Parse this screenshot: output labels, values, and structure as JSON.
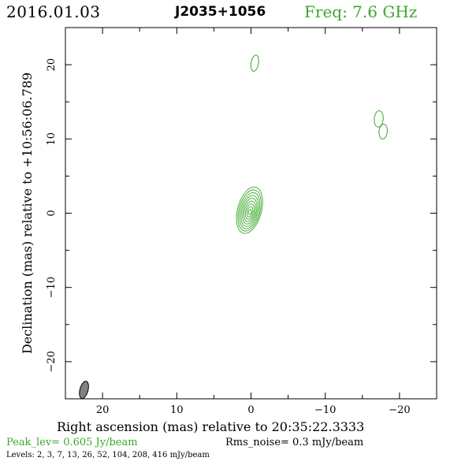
{
  "header": {
    "date": "2016.01.03",
    "source": "J2035+1056",
    "freq": "Freq: 7.6 GHz"
  },
  "chart_data": {
    "type": "contour",
    "xlabel": "Right ascension (mas) relative to 20:35:22.3333",
    "ylabel": "Declination (mas) relative to +10:56:06.789",
    "xlim": [
      25,
      -25
    ],
    "ylim": [
      -25,
      25
    ],
    "xticks": [
      20,
      10,
      0,
      -10,
      -20
    ],
    "xtick_labels": [
      "20",
      "10",
      "0",
      "−10",
      "−20"
    ],
    "yticks": [
      20,
      10,
      0,
      -10,
      -20
    ],
    "ytick_labels": [
      "20",
      "10",
      "0",
      "−10",
      "−20"
    ],
    "contour_color": "#3aa829",
    "peak_label": "Peak_lev=  0.605 Jy/beam",
    "rms_label": "Rms_noise=  0.3 mJy/beam",
    "levels_label": "Levels:   2,   3,   7,   13,   26,   52,  104,  208,  416  mJy/beam",
    "levels_mjy": [
      2,
      3,
      7,
      13,
      26,
      52,
      104,
      208,
      416
    ],
    "core": {
      "x": 0.2,
      "y": 0.4,
      "a_outer": 3.2,
      "b_outer": 1.6,
      "pa_deg": 15
    },
    "components": [
      {
        "x": -0.5,
        "y": 20.2,
        "a": 1.1,
        "b": 0.5,
        "pa_deg": 10
      },
      {
        "x": -17.2,
        "y": 12.7,
        "a": 1.1,
        "b": 0.6,
        "pa_deg": 5
      },
      {
        "x": -17.8,
        "y": 11.0,
        "a": 1.0,
        "b": 0.55,
        "pa_deg": 5
      }
    ],
    "beam": {
      "x": 22.5,
      "y": -23.8,
      "a": 1.2,
      "b": 0.55,
      "pa_deg": 15,
      "fill": "#808080"
    }
  }
}
